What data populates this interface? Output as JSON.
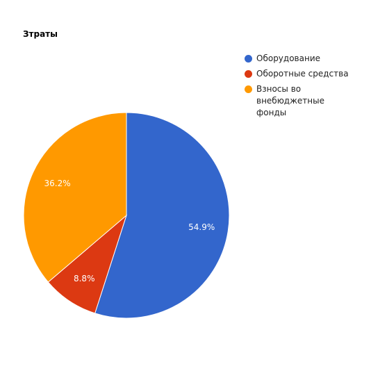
{
  "chart_data": {
    "type": "pie",
    "title": "Зтраты",
    "legend_position": "right",
    "slices": [
      {
        "label": "Оборудование",
        "value": 54.9,
        "display": "54.9%",
        "color": "#3366cc"
      },
      {
        "label": "Оборотные средства",
        "value": 8.8,
        "display": "8.8%",
        "color": "#dc3912"
      },
      {
        "label": "Взносы во внебюджетные фонды",
        "value": 36.2,
        "display": "36.2%",
        "color": "#ff9900"
      }
    ]
  }
}
